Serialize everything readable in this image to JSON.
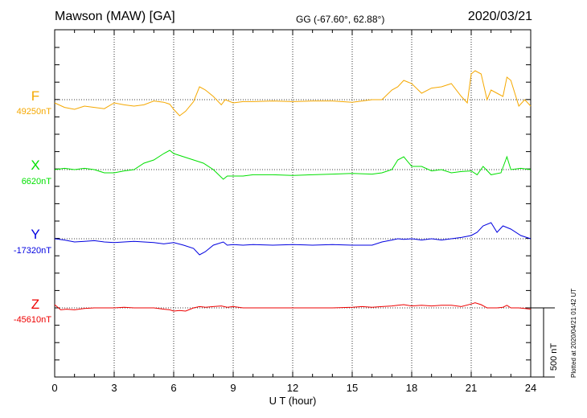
{
  "header": {
    "station": "Mawson (MAW)  [GA]",
    "coords": "GG (-67.60°,  62.88°)",
    "date": "2020/03/21"
  },
  "plot_stamp": "Plotted at 2020/04/21 01:42 UT",
  "colors": {
    "F": "#f5a800",
    "X": "#00e000",
    "Y": "#0000e0",
    "Z": "#ee0000"
  },
  "chart_data": {
    "type": "line",
    "xlabel": "U T (hour)",
    "xlim": [
      0,
      24
    ],
    "x_ticks": [
      "0",
      "3",
      "6",
      "9",
      "12",
      "15",
      "18",
      "21",
      "24"
    ],
    "scale_bar": "500 nT",
    "series": [
      {
        "name": "F",
        "baseline_label": "49250nT",
        "color": "#f5a800",
        "x": [
          0,
          0.5,
          1,
          1.5,
          2,
          2.5,
          3,
          3.5,
          4,
          4.5,
          5,
          5.5,
          5.8,
          6,
          6.3,
          6.6,
          7,
          7.3,
          7.6,
          8,
          8.4,
          8.6,
          9,
          9.5,
          10,
          11,
          12,
          13,
          14,
          15,
          15.5,
          16,
          16.5,
          17,
          17.3,
          17.6,
          18,
          18.5,
          19,
          19.5,
          20,
          20.5,
          20.8,
          21,
          21.2,
          21.5,
          21.8,
          22,
          22.3,
          22.6,
          22.8,
          23,
          23.4,
          23.7,
          24
        ],
        "values": [
          -5,
          -12,
          -15,
          -10,
          -12,
          -14,
          -5,
          -8,
          -10,
          -8,
          -2,
          -4,
          -7,
          -15,
          -25,
          -18,
          -3,
          20,
          15,
          5,
          -8,
          0,
          -5,
          -3,
          -3,
          -2,
          -3,
          -2,
          -2,
          -4,
          -2,
          0,
          0,
          15,
          20,
          30,
          25,
          10,
          18,
          20,
          25,
          5,
          -5,
          40,
          45,
          40,
          0,
          15,
          10,
          5,
          35,
          30,
          -10,
          0,
          -10
        ]
      },
      {
        "name": "X",
        "baseline_label": "6620nT",
        "color": "#00e000",
        "x": [
          0,
          0.5,
          1,
          1.5,
          2,
          2.5,
          3,
          3.5,
          4,
          4.5,
          5,
          5.5,
          5.8,
          6,
          6.5,
          7,
          7.5,
          8,
          8.5,
          8.7,
          9,
          9.5,
          10,
          11,
          12,
          13,
          14,
          15,
          16,
          16.5,
          17,
          17.3,
          17.6,
          18,
          18.5,
          19,
          19.5,
          20,
          20.5,
          21,
          21.3,
          21.6,
          22,
          22.5,
          22.8,
          23,
          23.5,
          24
        ],
        "values": [
          0,
          2,
          0,
          2,
          0,
          -5,
          -5,
          -2,
          0,
          10,
          15,
          25,
          30,
          25,
          20,
          15,
          10,
          0,
          -15,
          -10,
          -10,
          -10,
          -8,
          -8,
          -9,
          -8,
          -7,
          -6,
          -7,
          -5,
          0,
          15,
          20,
          5,
          5,
          -2,
          0,
          -5,
          -3,
          -2,
          -8,
          5,
          -8,
          -5,
          20,
          0,
          2,
          0
        ]
      },
      {
        "name": "Y",
        "baseline_label": "-17320nT",
        "color": "#0000e0",
        "x": [
          0,
          0.5,
          1,
          1.5,
          2,
          2.5,
          3,
          3.5,
          4,
          4.5,
          5,
          5.5,
          6,
          6.5,
          7,
          7.3,
          7.6,
          8,
          8.5,
          8.7,
          9,
          9.5,
          10,
          11,
          12,
          13,
          14,
          15,
          16,
          16.5,
          17,
          17.3,
          17.6,
          18,
          18.5,
          19,
          19.5,
          20,
          20.5,
          21,
          21.3,
          21.6,
          22,
          22.3,
          22.6,
          23,
          23.5,
          24
        ],
        "values": [
          0,
          -2,
          -5,
          -4,
          -3,
          -5,
          -6,
          -5,
          -4,
          -5,
          -6,
          -8,
          -6,
          -10,
          -15,
          -25,
          -20,
          -10,
          -5,
          -10,
          -9,
          -10,
          -9,
          -10,
          -9,
          -10,
          -9,
          -10,
          -10,
          -5,
          -2,
          0,
          -1,
          0,
          -2,
          0,
          -2,
          0,
          2,
          5,
          10,
          20,
          25,
          10,
          20,
          15,
          5,
          0
        ]
      },
      {
        "name": "Z",
        "baseline_label": "-45610nT",
        "color": "#ee0000",
        "x": [
          0,
          0.3,
          0.6,
          1,
          1.5,
          2,
          2.5,
          3,
          3.5,
          4,
          4.5,
          5,
          5.5,
          5.8,
          6,
          6.3,
          6.6,
          7,
          7.3,
          7.6,
          8,
          8.4,
          8.7,
          9,
          9.5,
          10,
          11,
          12,
          13,
          14,
          15,
          15.5,
          16,
          16.5,
          17,
          17.3,
          17.6,
          18,
          18.5,
          19,
          19.5,
          20,
          20.5,
          21,
          21.2,
          21.5,
          21.8,
          22,
          22.3,
          22.6,
          22.8,
          23,
          23.4,
          23.7,
          24
        ],
        "values": [
          5,
          -3,
          -2,
          -3,
          -1,
          0,
          0,
          0,
          1,
          0,
          0,
          0,
          -2,
          -3,
          -5,
          -4,
          -5,
          0,
          2,
          1,
          2,
          3,
          1,
          2,
          0,
          0,
          0,
          0,
          0,
          0,
          1,
          2,
          1,
          2,
          3,
          4,
          5,
          3,
          4,
          3,
          4,
          4,
          2,
          6,
          8,
          5,
          0,
          0,
          0,
          1,
          4,
          0,
          0,
          -1,
          -2
        ]
      }
    ]
  }
}
